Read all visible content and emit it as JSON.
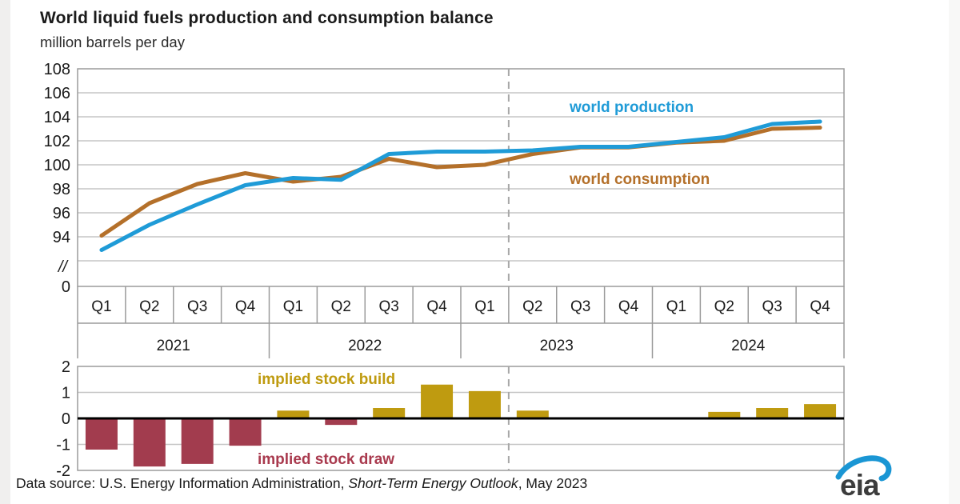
{
  "header": {
    "title": "World liquid fuels production and consumption balance",
    "subtitle": "million barrels per day"
  },
  "annotations": {
    "production_label": "world production",
    "consumption_label": "world consumption",
    "build_label": "implied stock build",
    "draw_label": "implied stock draw"
  },
  "colors": {
    "production": "#1f9bd7",
    "consumption": "#b4702a",
    "build_bar": "#bf9b10",
    "draw_bar": "#a23c4e",
    "build_label": "#bf9b10",
    "draw_label": "#a93a4e",
    "gridline": "#c6c6c6",
    "frame": "#9b9b9b",
    "axis_text": "#1a1a1a",
    "zero_line": "#000000",
    "forecast_divider": "#a8a8a8",
    "logo_swoosh": "#1a96d4"
  },
  "chart_data": [
    {
      "type": "line",
      "title": "World liquid fuels production and consumption balance",
      "ylabel": "million barrels per day",
      "y_ticks": [
        108,
        106,
        104,
        102,
        100,
        98,
        96,
        94
      ],
      "axis_break_label": "//",
      "baseline_label": "0",
      "ylim_shown": [
        92,
        108
      ],
      "grid": true,
      "quarter_labels": [
        "Q1",
        "Q2",
        "Q3",
        "Q4",
        "Q1",
        "Q2",
        "Q3",
        "Q4",
        "Q1",
        "Q2",
        "Q3",
        "Q4",
        "Q1",
        "Q2",
        "Q3",
        "Q4"
      ],
      "year_labels": [
        "2021",
        "2022",
        "2023",
        "2024"
      ],
      "forecast_start_index": 9,
      "series": [
        {
          "name": "world consumption",
          "values": [
            94.1,
            96.8,
            98.4,
            99.3,
            98.6,
            99.0,
            100.5,
            99.8,
            100.0,
            100.9,
            101.45,
            101.45,
            101.85,
            102.0,
            103.0,
            103.1
          ]
        },
        {
          "name": "world production",
          "values": [
            92.9,
            95.0,
            96.7,
            98.3,
            98.9,
            98.75,
            100.9,
            101.1,
            101.1,
            101.2,
            101.5,
            101.5,
            101.9,
            102.3,
            103.4,
            103.6
          ]
        }
      ]
    },
    {
      "type": "bar",
      "title": "implied stock build / implied stock draw",
      "y_ticks": [
        2,
        1,
        0,
        -1,
        -2
      ],
      "ylim": [
        -2,
        2
      ],
      "grid": true,
      "quarter_labels": [
        "Q1",
        "Q2",
        "Q3",
        "Q4",
        "Q1",
        "Q2",
        "Q3",
        "Q4",
        "Q1",
        "Q2",
        "Q3",
        "Q4",
        "Q1",
        "Q2",
        "Q3",
        "Q4"
      ],
      "year_labels": [
        "2021",
        "2022",
        "2023",
        "2024"
      ],
      "values": [
        -1.2,
        -1.85,
        -1.75,
        -1.05,
        0.3,
        -0.25,
        0.4,
        1.3,
        1.05,
        0.3,
        0,
        0,
        0,
        0.25,
        0.4,
        0.55
      ]
    }
  ],
  "footer": {
    "prefix": "Data source: U.S. Energy Information Administration, ",
    "source_name": "Short-Term Energy Outlook",
    "suffix": ", May 2023",
    "logo_text": "eia"
  }
}
